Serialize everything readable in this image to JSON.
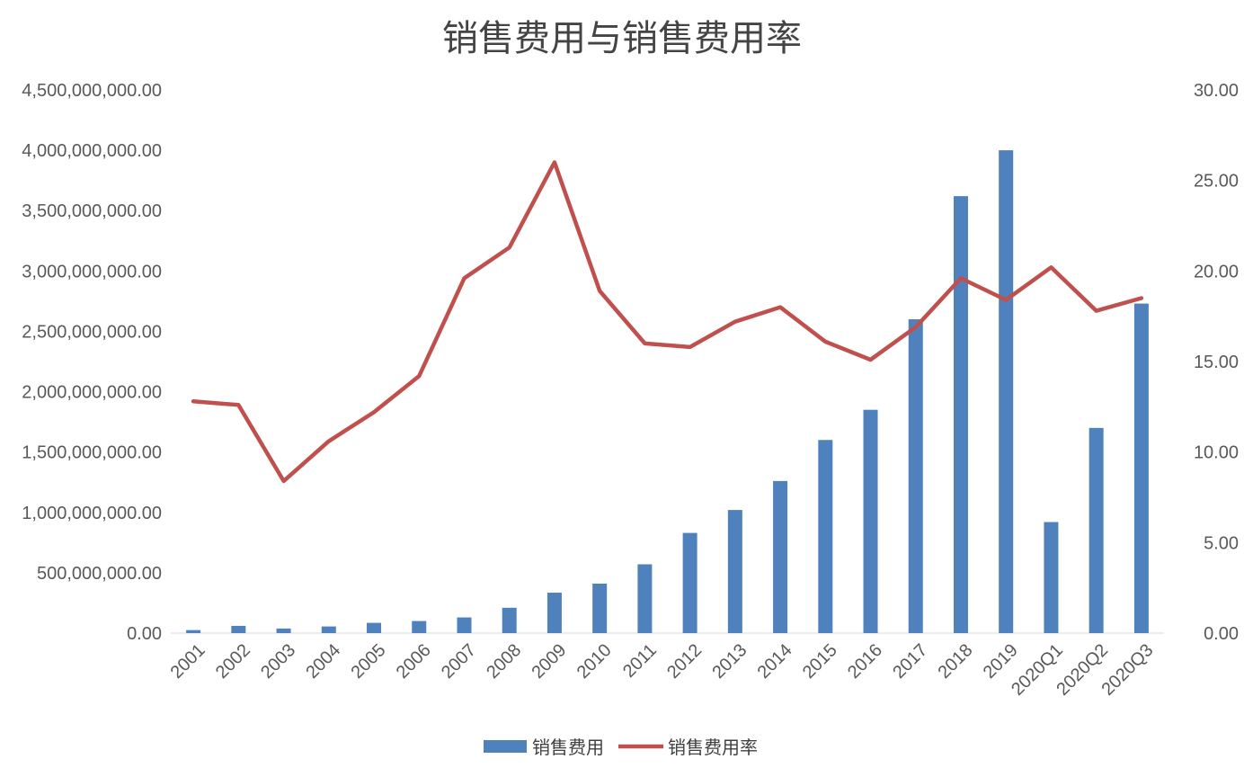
{
  "chart_data": {
    "type": "bar",
    "title": "销售费用与销售费用率",
    "categories": [
      "2001",
      "2002",
      "2003",
      "2004",
      "2005",
      "2006",
      "2007",
      "2008",
      "2009",
      "2010",
      "2011",
      "2012",
      "2013",
      "2014",
      "2015",
      "2016",
      "2017",
      "2018",
      "2019",
      "2020Q1",
      "2020Q2",
      "2020Q3"
    ],
    "series": [
      {
        "name": "销售费用",
        "type": "bar",
        "axis": "left",
        "color": "#4F81BD",
        "values": [
          25000000,
          60000000,
          38000000,
          55000000,
          85000000,
          100000000,
          130000000,
          210000000,
          335000000,
          410000000,
          570000000,
          830000000,
          1020000000,
          1260000000,
          1600000000,
          1850000000,
          2600000000,
          3620000000,
          4000000000,
          920000000,
          1700000000,
          2730000000
        ]
      },
      {
        "name": "销售费用率",
        "type": "line",
        "axis": "right",
        "color": "#C0504D",
        "values": [
          12.8,
          12.6,
          8.4,
          10.6,
          12.2,
          14.2,
          19.6,
          21.3,
          26.0,
          18.9,
          16.0,
          15.8,
          17.2,
          18.0,
          16.1,
          15.1,
          16.9,
          19.6,
          18.4,
          20.2,
          17.8,
          18.5
        ]
      }
    ],
    "y_left": {
      "ylim": [
        0,
        4500000000
      ],
      "ticks": [
        "0.00",
        "500,000,000.00",
        "1,000,000,000.00",
        "1,500,000,000.00",
        "2,000,000,000.00",
        "2,500,000,000.00",
        "3,000,000,000.00",
        "3,500,000,000.00",
        "4,000,000,000.00",
        "4,500,000,000.00"
      ]
    },
    "y_right": {
      "ylim": [
        0,
        30
      ],
      "ticks": [
        "0.00",
        "5.00",
        "10.00",
        "15.00",
        "20.00",
        "25.00",
        "30.00"
      ]
    },
    "grid": false,
    "legend": "bottom"
  }
}
